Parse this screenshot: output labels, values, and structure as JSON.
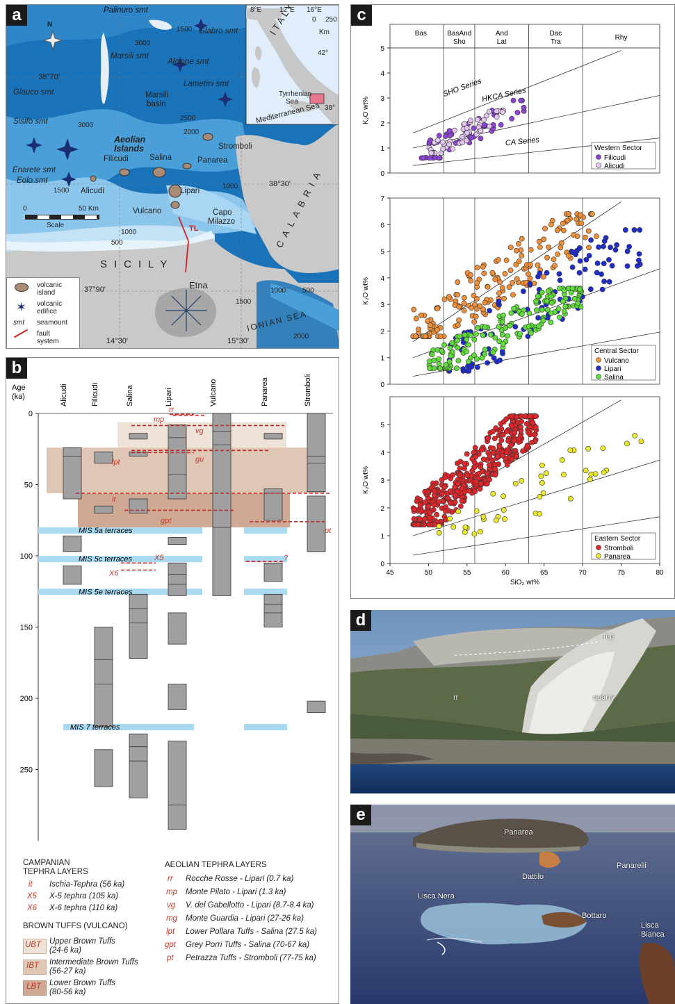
{
  "panels": {
    "a": "a",
    "b": "b",
    "c": "c",
    "d": "d",
    "e": "e"
  },
  "map": {
    "north": "N",
    "seamounts": [
      "Palinuro smt",
      "Glabro smt",
      "Alcione smt",
      "Marsili smt",
      "Lametini smt",
      "Glauco smt",
      "Sisifo smt",
      "Enarete smt",
      "Eolo smt"
    ],
    "basin": [
      "Marsili",
      "basin"
    ],
    "islands": [
      "Filicudi",
      "Alicudi",
      "Salina",
      "Panarea",
      "Stromboli",
      "Lipari",
      "Vulcano"
    ],
    "title": [
      "Aeolian",
      "Islands"
    ],
    "depths": [
      "1500",
      "3000",
      "2500",
      "2000",
      "3000",
      "1000",
      "1000",
      "500",
      "1000",
      "1500",
      "500",
      "1500",
      "2000"
    ],
    "coords": [
      "38°70'",
      "38°30'",
      "37°90'",
      "14°30'",
      "15°30'"
    ],
    "places": [
      "Capo",
      "Milazzo",
      "SICILY",
      "Etna",
      "CALABRIA",
      "IONIAN SEA"
    ],
    "fault": "TL",
    "scale": {
      "zero": "0",
      "km": "50 Km",
      "label": "Scale"
    },
    "legend": [
      "volcanic",
      "island",
      "volcanic",
      "edifice",
      "smt",
      "seamount",
      "fault",
      "system"
    ],
    "inset": {
      "lon": [
        "8°E",
        "12°E",
        "16°E"
      ],
      "lat": [
        "42°",
        "38°"
      ],
      "country": "ITALY",
      "seas": [
        "Tyrrhenian",
        "Sea",
        "Mediterranean Sea"
      ],
      "scale": [
        "0",
        "250",
        "Km"
      ]
    }
  },
  "strat": {
    "age_title": [
      "Age",
      "(ka)"
    ],
    "columns": [
      "Alicudi",
      "Filicudi",
      "Salina",
      "Lipari",
      "Vulcano",
      "Panarea",
      "Stromboli"
    ],
    "ages": [
      0,
      50,
      100,
      150,
      200,
      250
    ],
    "terraces": [
      "MIS 5a terraces",
      "MIS 5c terraces",
      "MIS 5e terraces",
      "MIS 7 terraces"
    ],
    "tephra_labels": [
      "rr",
      "mp",
      "vg",
      "gu",
      "lpt",
      "it",
      "gpt",
      "pt",
      "X5",
      "X6",
      "?"
    ],
    "legend": {
      "campanian_title": [
        "CAMPANIAN",
        "TEPHRA LAYERS"
      ],
      "campanian": [
        {
          "code": "it",
          "text": "Ischia-Tephra (56 ka)"
        },
        {
          "code": "X5",
          "text": "X-5 tephra (105 ka)"
        },
        {
          "code": "X6",
          "text": "X-6 tephra (110 ka)"
        }
      ],
      "brown_title": "BROWN TUFFS (VULCANO)",
      "brown": [
        {
          "code": "UBT",
          "l1": "Upper Brown Tuffs",
          "l2": "(24-6 ka)",
          "color": "#efe3d8"
        },
        {
          "code": "IBT",
          "l1": "Intermediate Brown Tuffs",
          "l2": "(56-27 ka)",
          "color": "#e0c7b5"
        },
        {
          "code": "LBT",
          "l1": "Lower Brown Tuffs",
          "l2": "(80-56 ka)",
          "color": "#cfa994"
        }
      ],
      "aeolian_title": "AEOLIAN TEPHRA LAYERS",
      "aeolian": [
        {
          "code": "rr",
          "text": "Rocche Rosse - Lipari (0.7 ka)"
        },
        {
          "code": "mp",
          "text": "Monte Pilato - Lipari (1.3 ka)"
        },
        {
          "code": "vg",
          "text": "V. del Gabellotto - Lipari (8.7-8.4 ka)"
        },
        {
          "code": "mg",
          "text": "Monte Guardia - Lipari (27-26 ka)"
        },
        {
          "code": "lpt",
          "text": "Lower Pollara Tuffs - Salina (27.5 ka)"
        },
        {
          "code": "gpt",
          "text": "Grey Porri Tuffs - Salina (70-67 ka)"
        },
        {
          "code": "pt",
          "text": "Petrazza Tuffs - Stromboli (77-75 ka)"
        }
      ]
    }
  },
  "chart_data": [
    {
      "type": "scatter",
      "title": "",
      "ylabel": "K₂O wt%",
      "xlabel": "SiO₂ wt%",
      "xlim": [
        45,
        80
      ],
      "ylim": [
        0,
        5
      ],
      "xticks": [
        45,
        50,
        55,
        60,
        65,
        70,
        75,
        80
      ],
      "yticks": [
        0,
        1,
        2,
        3,
        4,
        5
      ],
      "fields": [
        "Bas",
        "BasAnd",
        "Sho",
        "And",
        "Lat",
        "Dac",
        "Tra",
        "Rhy"
      ],
      "series_lines": [
        "SHO Series",
        "HKCA Series",
        "CA Series"
      ],
      "legend_title": "Western Sector",
      "series": [
        {
          "name": "Filicudi",
          "color": "#8e44d6",
          "n": 60,
          "xr": [
            49,
            63
          ],
          "yr": [
            0.6,
            2.9
          ]
        },
        {
          "name": "Alicudi",
          "color": "#e2c6ef",
          "n": 45,
          "xr": [
            50,
            60
          ],
          "yr": [
            0.8,
            2.5
          ]
        }
      ]
    },
    {
      "type": "scatter",
      "title": "",
      "ylabel": "K₂O wt%",
      "xlabel": "",
      "xlim": [
        45,
        80
      ],
      "ylim": [
        0,
        7
      ],
      "xticks": [
        45,
        50,
        55,
        60,
        65,
        70,
        75,
        80
      ],
      "yticks": [
        0,
        1,
        2,
        3,
        4,
        5,
        6,
        7
      ],
      "legend_title": "Central Sector",
      "series": [
        {
          "name": "Vulcano",
          "color": "#ef8f38",
          "n": 180,
          "xr": [
            48,
            72
          ],
          "yr": [
            1.8,
            6.4
          ]
        },
        {
          "name": "Lipari",
          "color": "#1f2dcc",
          "n": 110,
          "xr": [
            52,
            78
          ],
          "yr": [
            0.5,
            5.8
          ]
        },
        {
          "name": "Salina",
          "color": "#5fdd3a",
          "n": 170,
          "xr": [
            50,
            70
          ],
          "yr": [
            0.6,
            3.6
          ]
        }
      ]
    },
    {
      "type": "scatter",
      "title": "",
      "ylabel": "K₂O wt%",
      "xlabel": "SiO₂ wt%",
      "xlim": [
        45,
        80
      ],
      "ylim": [
        0,
        6
      ],
      "xticks": [
        45,
        50,
        55,
        60,
        65,
        70,
        75,
        80
      ],
      "yticks": [
        0,
        1,
        2,
        3,
        4,
        5
      ],
      "legend_title": "Eastern Sector",
      "series": [
        {
          "name": "Stromboli",
          "color": "#e0262b",
          "n": 420,
          "xr": [
            48,
            64
          ],
          "yr": [
            1.4,
            5.3
          ]
        },
        {
          "name": "Panarea",
          "color": "#eaea28",
          "n": 45,
          "xr": [
            51,
            78
          ],
          "yr": [
            0.6,
            4.6
          ]
        }
      ]
    }
  ],
  "photo_d": {
    "labels": [
      "mp",
      "rr",
      "quarry"
    ]
  },
  "photo_e": {
    "labels": [
      "Panarea",
      "Dattilo",
      "Panarelli",
      "Lisca Nera",
      "Bottaro",
      "Lisca",
      "Bianca"
    ]
  }
}
